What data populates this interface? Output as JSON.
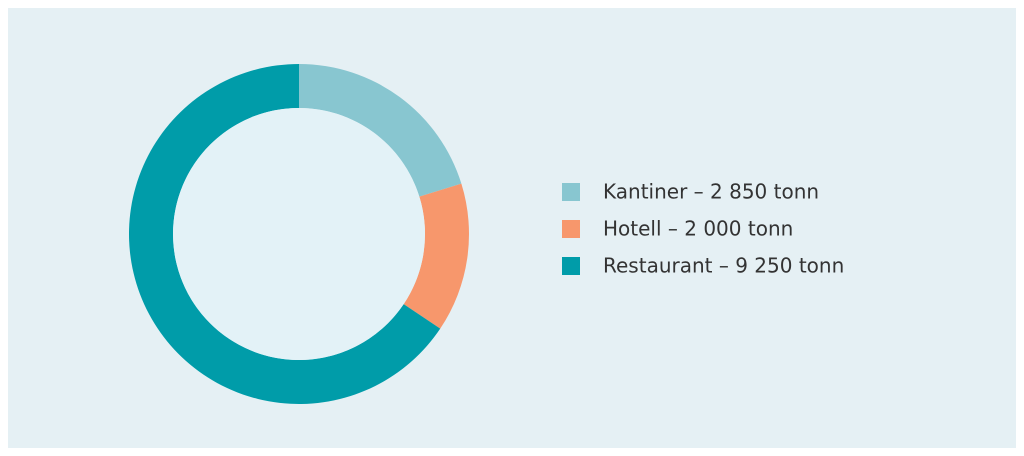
{
  "chart_data": {
    "type": "donut",
    "categories": [
      "Kantiner – 2 850 tonn",
      "Hotell – 2 000 tonn",
      "Restaurant – 9 250 tonn"
    ],
    "values": [
      2850,
      2000,
      9250
    ],
    "colors": [
      "#88c6d0",
      "#f7976c",
      "#009ca9"
    ],
    "legend": "right"
  }
}
